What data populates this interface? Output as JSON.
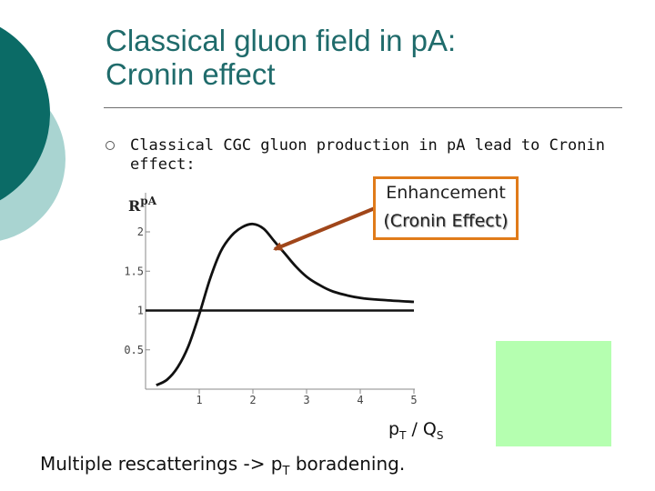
{
  "slide": {
    "title_line1": "Classical gluon field in pA:",
    "title_line2": "Cronin effect",
    "bullet": "Classical CGC gluon production in pA lead to Cronin effect:",
    "callout_line1": "Enhancement",
    "callout_line2": "(Cronin Effect)",
    "xlabel_main": "p",
    "xlabel_sub1": "T",
    "xlabel_mid": " / Q",
    "xlabel_sub2": "S",
    "footer_main": "Multiple rescatterings -> p",
    "footer_sub": "T",
    "footer_end": " boradening.",
    "colors": {
      "title": "#1f6b6b",
      "deco_dark": "#0b6b66",
      "deco_light": "#a9d4d1",
      "callout_border": "#e07b1a",
      "arrow": "#a0461a",
      "green_box": "#b5ffb0"
    }
  },
  "chart_data": {
    "type": "line",
    "ylabel_main": "R",
    "ylabel_sup": "pA",
    "xlim": [
      0.1,
      5
    ],
    "ylim": [
      0,
      2
    ],
    "x_ticks": [
      "1",
      "2",
      "3",
      "4",
      "5"
    ],
    "y_ticks": [
      "0.5",
      "1",
      "1.5",
      "2"
    ],
    "reference_line": 1,
    "series": [
      {
        "x": [
          0.2,
          0.4,
          0.6,
          0.8,
          1.0,
          1.2,
          1.4,
          1.6,
          1.8,
          2.0,
          2.2,
          2.4,
          2.6,
          2.8,
          3.0,
          3.2,
          3.5,
          4.0,
          4.5,
          5.0
        ],
        "values": [
          0.05,
          0.12,
          0.28,
          0.55,
          0.95,
          1.4,
          1.75,
          1.95,
          2.06,
          2.1,
          2.04,
          1.88,
          1.72,
          1.56,
          1.43,
          1.34,
          1.24,
          1.16,
          1.13,
          1.11
        ]
      }
    ]
  }
}
